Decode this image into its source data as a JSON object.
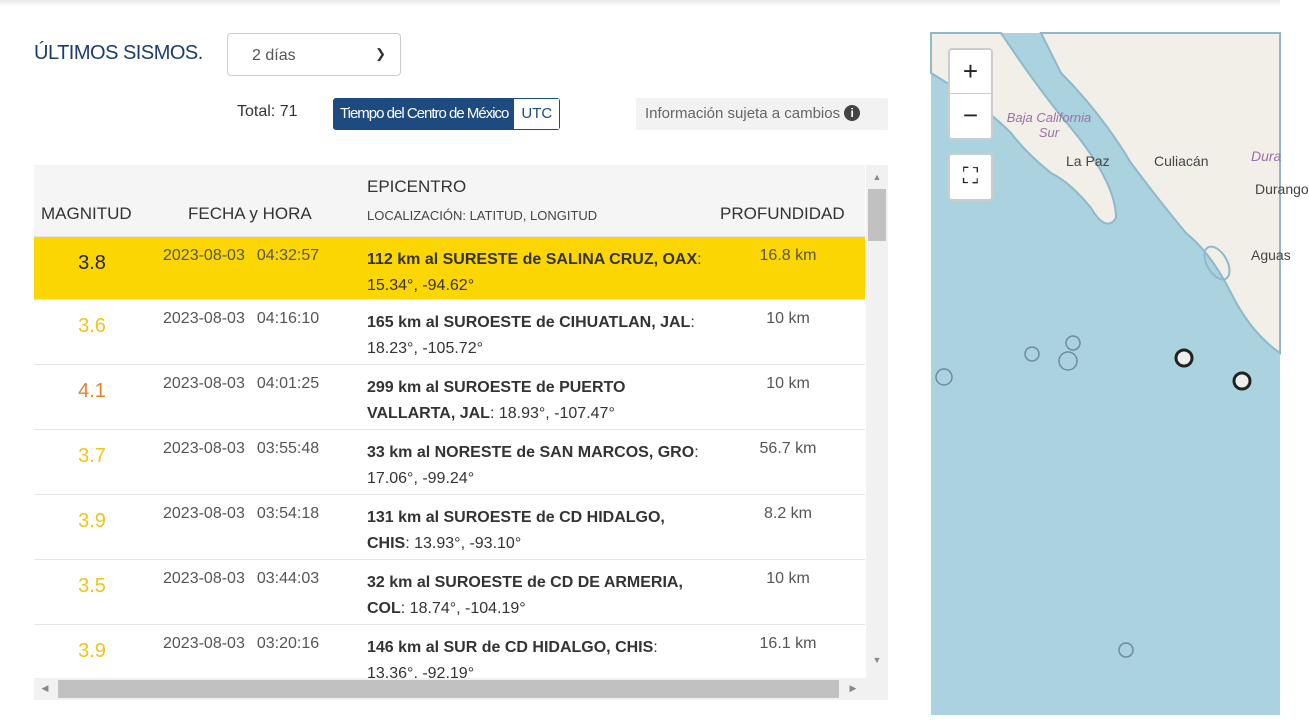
{
  "header": {
    "title": "ÚLTIMOS SISMOS.",
    "period_select": "2 días",
    "total": "Total: 71",
    "tz_options": [
      "Tiempo del Centro de México",
      "UTC"
    ],
    "tz_selected": "Tiempo del Centro de México",
    "info": "Información sujeta a cambios"
  },
  "table": {
    "columns": {
      "magnitude": "MAGNITUD",
      "datetime": "FECHA y HORA",
      "epicenter": "EPICENTRO",
      "epicenter_sub": "LOCALIZACIÓN: LATITUD, LONGITUD",
      "depth": "PROFUNDIDAD"
    },
    "rows": [
      {
        "mag": "3.8",
        "date": "2023-08-03",
        "time": "04:32:57",
        "place": "112 km al SURESTE de SALINA CRUZ, OAX",
        "coords": ": 15.34°, -94.62°",
        "depth": "16.8 km",
        "highlight": true
      },
      {
        "mag": "3.6",
        "date": "2023-08-03",
        "time": "04:16:10",
        "place": "165 km al SUROESTE de CIHUATLAN, JAL",
        "coords": ": 18.23°, -105.72°",
        "depth": "10 km"
      },
      {
        "mag": "4.1",
        "date": "2023-08-03",
        "time": "04:01:25",
        "place": "299 km al SUROESTE de PUERTO VALLARTA, JAL",
        "coords": ": 18.93°, -107.47°",
        "depth": "10 km"
      },
      {
        "mag": "3.7",
        "date": "2023-08-03",
        "time": "03:55:48",
        "place": "33 km al NORESTE de SAN MARCOS, GRO",
        "coords": ": 17.06°, -99.24°",
        "depth": "56.7 km"
      },
      {
        "mag": "3.9",
        "date": "2023-08-03",
        "time": "03:54:18",
        "place": "131 km al SUROESTE de CD HIDALGO, CHIS",
        "coords": ": 13.93°, -93.10°",
        "depth": "8.2 km"
      },
      {
        "mag": "3.5",
        "date": "2023-08-03",
        "time": "03:44:03",
        "place": "32 km al SUROESTE de CD DE ARMERIA, COL",
        "coords": ": 18.74°, -104.19°",
        "depth": "10 km"
      },
      {
        "mag": "3.9",
        "date": "2023-08-03",
        "time": "03:20:16",
        "place": "146 km al SUR de CD HIDALGO, CHIS",
        "coords": ": 13.36°, -92.19°",
        "depth": "16.1 km"
      }
    ]
  },
  "colors": {
    "mag_low": "#f0c419",
    "mag_mid": "#e8822a",
    "highlight": "#fcd600",
    "brand": "#1d4a7f"
  },
  "map": {
    "labels": [
      "Baja California Sur",
      "La Paz",
      "Culiacán",
      "Dura",
      "Durango",
      "Aguas"
    ],
    "zoom_in": "+",
    "zoom_out": "−"
  }
}
